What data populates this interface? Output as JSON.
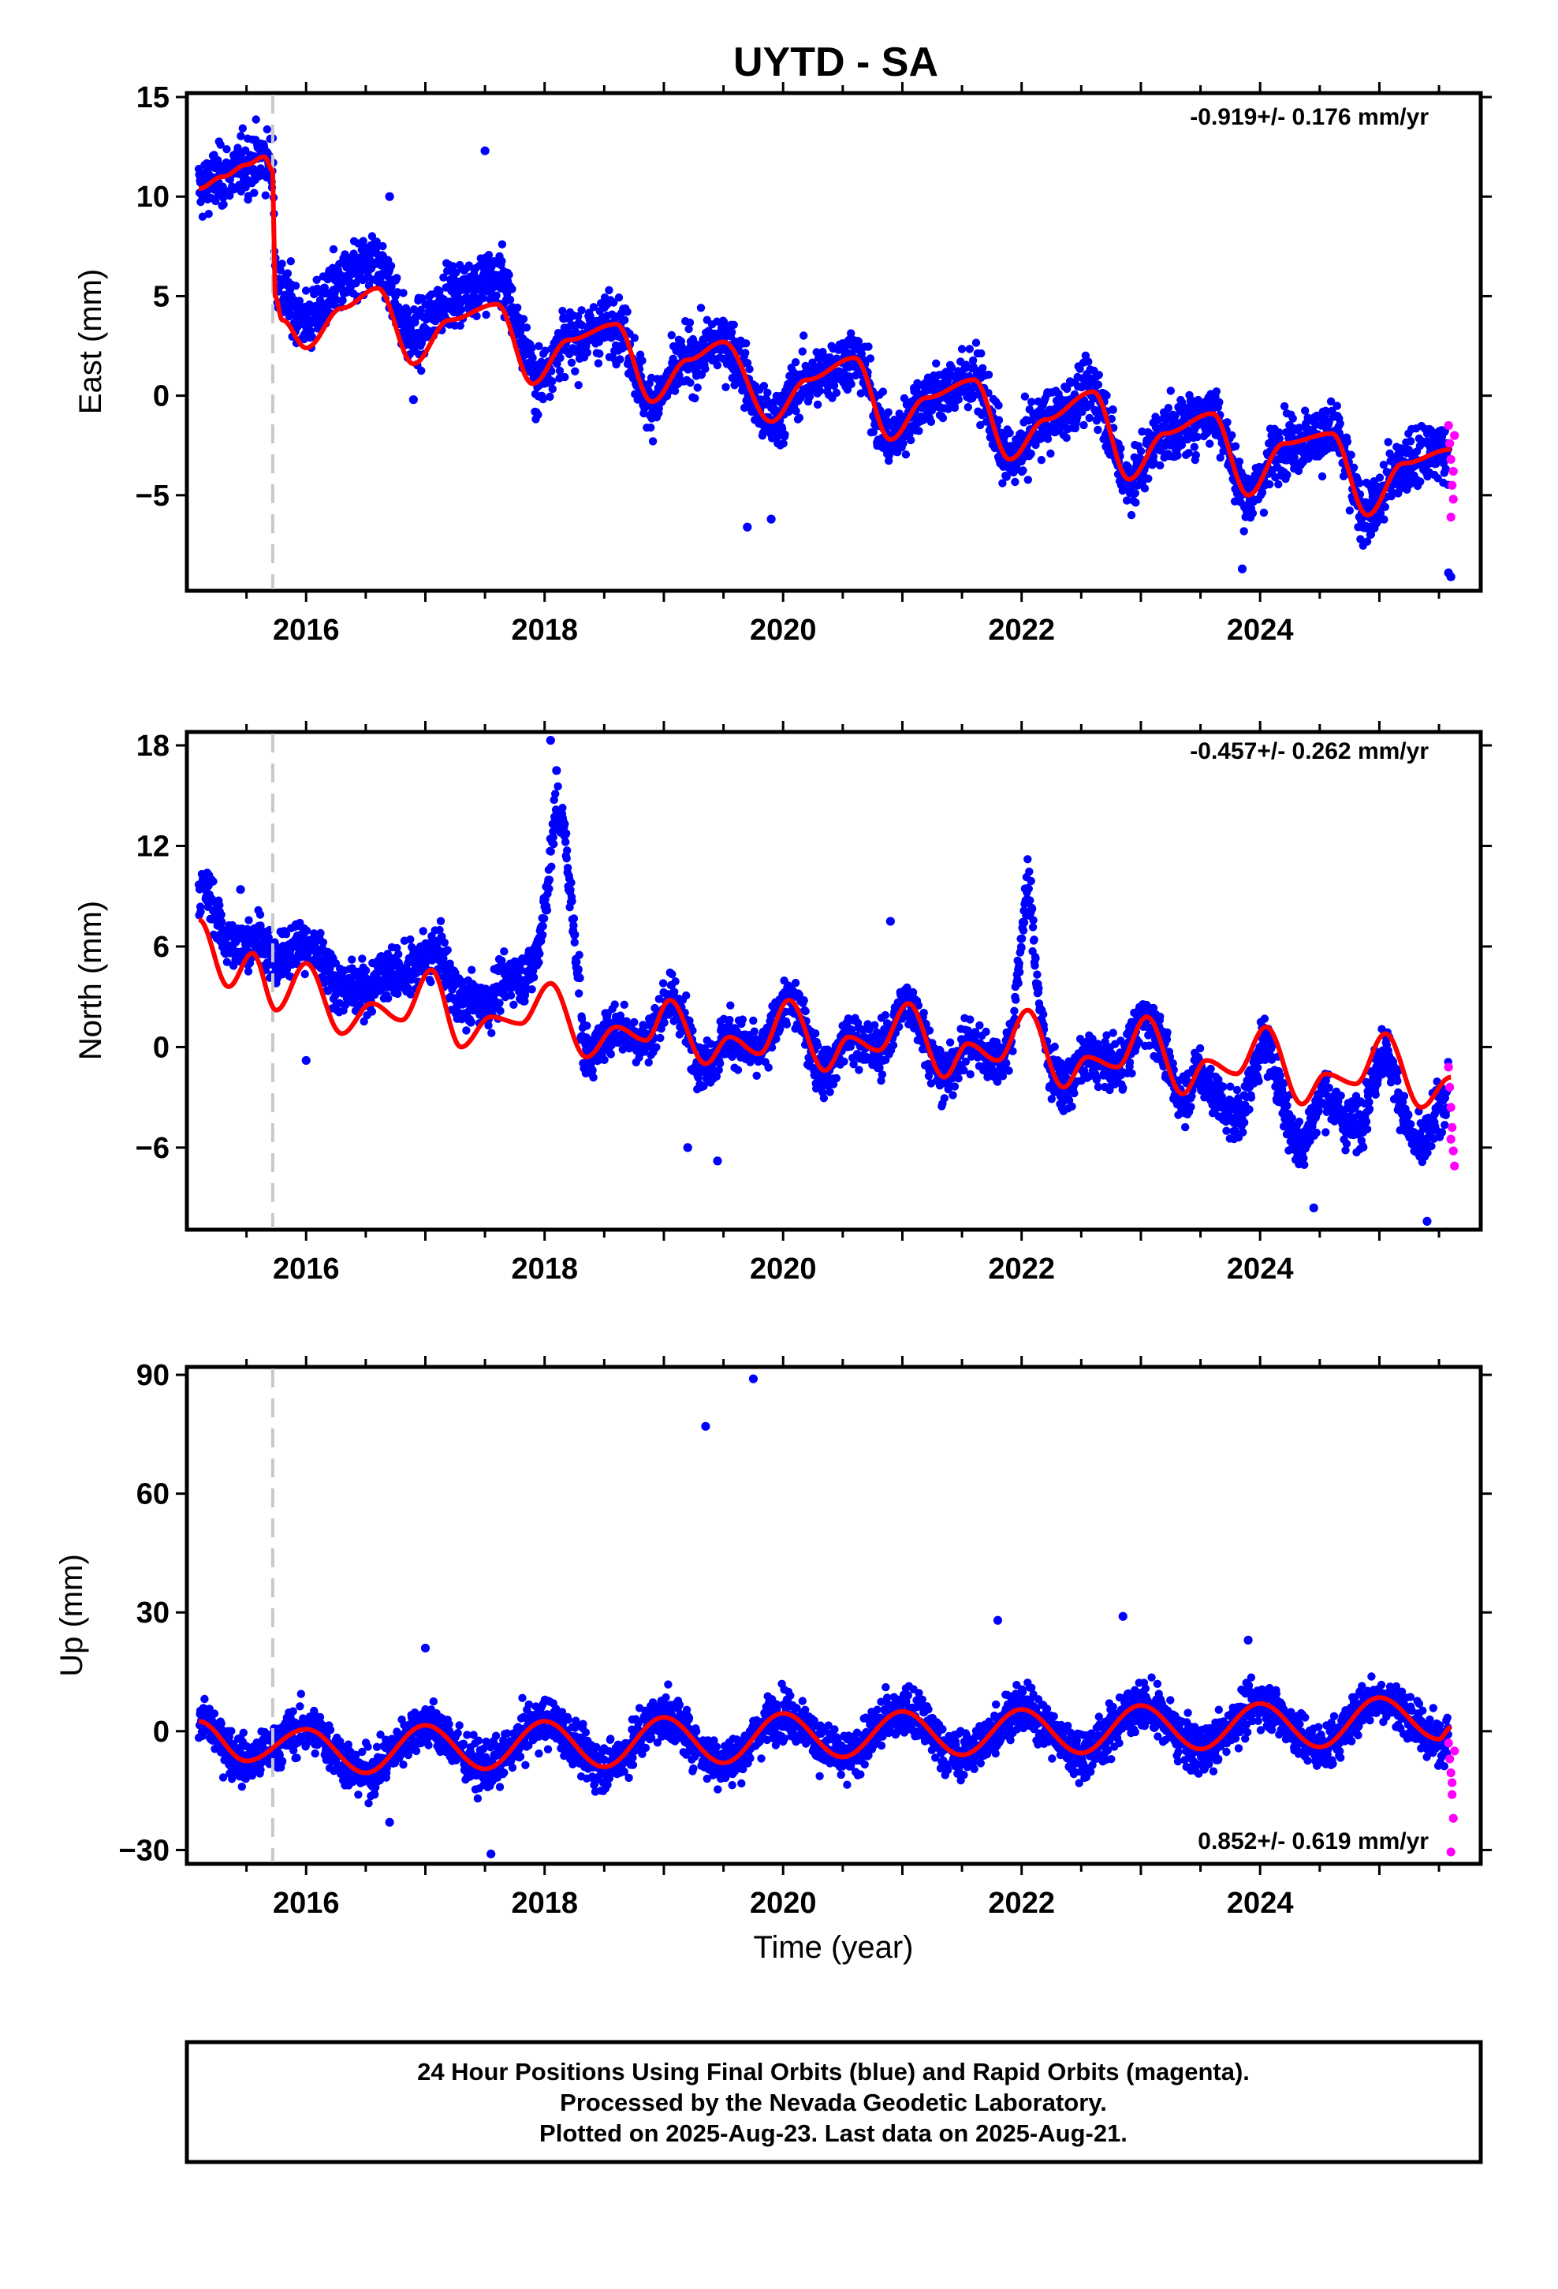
{
  "title": "UYTD - SA",
  "x_axis_label": "Time (year)",
  "footer": {
    "line1": "24 Hour Positions Using Final Orbits (blue) and Rapid Orbits (magenta).",
    "line2": "Processed by the Nevada Geodetic Laboratory.",
    "line3": "Plotted on 2025-Aug-23. Last data on 2025-Aug-21."
  },
  "colors": {
    "final_orbits": "#0000ff",
    "rapid_orbits": "#ff00ff",
    "model_fit": "#ff0000",
    "event_marker": "#c8c8c8"
  },
  "chart_data": [
    {
      "type": "scatter",
      "panel": "east",
      "ylabel": "East (mm)",
      "rate_label": "-0.919+/- 0.176 mm/yr",
      "xlim": [
        2015.0,
        2025.85
      ],
      "ylim": [
        -9.8,
        15.2
      ],
      "yticks": [
        15,
        10,
        5,
        0,
        -5
      ],
      "xticks": [
        2016,
        2018,
        2020,
        2022,
        2024
      ],
      "event_lines": [
        2015.72
      ],
      "grid": false,
      "fit": {
        "x": [
          2015.1,
          2015.3,
          2015.5,
          2015.65,
          2015.72,
          2015.74,
          2015.8,
          2016.0,
          2016.3,
          2016.6,
          2016.9,
          2017.2,
          2017.6,
          2017.9,
          2018.2,
          2018.6,
          2018.9,
          2019.2,
          2019.5,
          2019.9,
          2020.2,
          2020.6,
          2020.9,
          2021.2,
          2021.6,
          2021.9,
          2022.2,
          2022.6,
          2022.9,
          2023.2,
          2023.6,
          2023.9,
          2024.2,
          2024.6,
          2024.9,
          2025.2,
          2025.6
        ],
        "y": [
          10.4,
          11.0,
          11.6,
          12.0,
          11.3,
          5.0,
          3.8,
          2.4,
          4.4,
          5.4,
          1.6,
          3.8,
          4.6,
          0.6,
          2.8,
          3.6,
          -0.3,
          1.8,
          2.7,
          -1.3,
          0.8,
          1.9,
          -2.2,
          -0.1,
          0.8,
          -3.2,
          -1.2,
          0.2,
          -4.2,
          -1.9,
          -0.9,
          -5.0,
          -2.4,
          -1.9,
          -6.0,
          -3.4,
          -2.7
        ]
      },
      "outliers": [
        [
          2015.8,
          4.2
        ],
        [
          2017.5,
          12.3
        ],
        [
          2016.7,
          10.0
        ],
        [
          2019.7,
          -6.6
        ],
        [
          2023.85,
          -8.7
        ],
        [
          2025.58,
          -8.9
        ],
        [
          2025.6,
          -9.1
        ],
        [
          2016.9,
          -0.2
        ],
        [
          2019.9,
          -6.2
        ]
      ],
      "rapid_points": [
        [
          2025.58,
          -1.5
        ],
        [
          2025.59,
          -2.4
        ],
        [
          2025.6,
          -3.2
        ],
        [
          2025.61,
          -4.5
        ],
        [
          2025.62,
          -5.2
        ],
        [
          2025.6,
          -6.1
        ],
        [
          2025.63,
          -2.0
        ],
        [
          2025.62,
          -3.8
        ]
      ]
    },
    {
      "type": "scatter",
      "panel": "north",
      "ylabel": "North (mm)",
      "rate_label": "-0.457+/- 0.262 mm/yr",
      "xlim": [
        2015.0,
        2025.85
      ],
      "ylim": [
        -10.9,
        18.8
      ],
      "yticks": [
        18,
        12,
        6,
        0,
        -6
      ],
      "xticks": [
        2016,
        2018,
        2020,
        2022,
        2024
      ],
      "event_lines": [
        2015.72
      ],
      "grid": false,
      "fit": {
        "x": [
          2015.1,
          2015.35,
          2015.55,
          2015.75,
          2016.0,
          2016.3,
          2016.55,
          2016.8,
          2017.05,
          2017.3,
          2017.55,
          2017.8,
          2018.05,
          2018.35,
          2018.6,
          2018.85,
          2019.05,
          2019.35,
          2019.55,
          2019.8,
          2020.05,
          2020.35,
          2020.55,
          2020.8,
          2021.05,
          2021.35,
          2021.55,
          2021.8,
          2022.05,
          2022.35,
          2022.55,
          2022.8,
          2023.05,
          2023.35,
          2023.55,
          2023.8,
          2024.05,
          2024.35,
          2024.55,
          2024.8,
          2025.05,
          2025.35,
          2025.6
        ],
        "y": [
          7.6,
          3.6,
          5.6,
          2.2,
          5.0,
          0.8,
          2.6,
          1.6,
          4.6,
          0.0,
          1.8,
          1.4,
          3.8,
          -0.6,
          1.2,
          0.4,
          2.8,
          -1.0,
          0.6,
          -0.4,
          2.8,
          -1.4,
          0.6,
          -0.2,
          2.6,
          -1.8,
          0.2,
          -0.8,
          2.2,
          -2.4,
          -0.6,
          -1.2,
          1.8,
          -2.8,
          -0.8,
          -1.6,
          1.2,
          -3.4,
          -1.6,
          -2.2,
          0.8,
          -3.6,
          -1.8
        ]
      },
      "outliers": [
        [
          2018.05,
          18.3
        ],
        [
          2018.1,
          16.5
        ],
        [
          2016.0,
          -0.8
        ],
        [
          2019.45,
          -6.8
        ],
        [
          2019.2,
          -6.0
        ],
        [
          2024.45,
          -9.6
        ],
        [
          2025.4,
          -10.4
        ],
        [
          2020.9,
          7.5
        ],
        [
          2015.45,
          9.4
        ]
      ],
      "rapid_points": [
        [
          2025.58,
          -1.2
        ],
        [
          2025.59,
          -2.4
        ],
        [
          2025.6,
          -3.6
        ],
        [
          2025.61,
          -4.8
        ],
        [
          2025.62,
          -6.2
        ],
        [
          2025.63,
          -7.1
        ],
        [
          2025.6,
          -5.5
        ]
      ]
    },
    {
      "type": "scatter",
      "panel": "up",
      "ylabel": "Up (mm)",
      "rate_label": "0.852+/- 0.619 mm/yr",
      "xlim": [
        2015.0,
        2025.85
      ],
      "ylim": [
        -33.5,
        92
      ],
      "yticks": [
        90,
        60,
        30,
        0,
        -30
      ],
      "xticks": [
        2016,
        2018,
        2020,
        2022,
        2024
      ],
      "event_lines": [
        2015.72
      ],
      "grid": false,
      "fit": {
        "x": [
          2015.1,
          2015.5,
          2016.0,
          2016.5,
          2017.0,
          2017.5,
          2018.0,
          2018.5,
          2019.0,
          2019.5,
          2020.0,
          2020.5,
          2021.0,
          2021.5,
          2022.0,
          2022.5,
          2023.0,
          2023.5,
          2024.0,
          2024.5,
          2025.0,
          2025.5,
          2025.6
        ],
        "y": [
          2.5,
          -7.5,
          0.5,
          -10.5,
          1.5,
          -9.5,
          2.5,
          -9.0,
          3.5,
          -8.0,
          4.5,
          -6.5,
          5.0,
          -6.0,
          5.5,
          -5.5,
          6.5,
          -4.5,
          7.0,
          -4.0,
          8.5,
          -2.0,
          1.0
        ]
      },
      "outliers": [
        [
          2019.35,
          77
        ],
        [
          2019.75,
          89
        ],
        [
          2017.55,
          -31
        ],
        [
          2021.8,
          28
        ],
        [
          2022.85,
          29
        ],
        [
          2017.0,
          21
        ],
        [
          2016.7,
          -23
        ],
        [
          2023.9,
          23
        ]
      ],
      "rapid_points": [
        [
          2025.58,
          -3.0
        ],
        [
          2025.59,
          -7.0
        ],
        [
          2025.6,
          -10.5
        ],
        [
          2025.61,
          -16.0
        ],
        [
          2025.62,
          -22.0
        ],
        [
          2025.6,
          -30.5
        ],
        [
          2025.63,
          -5.0
        ],
        [
          2025.61,
          -13.0
        ]
      ]
    }
  ]
}
